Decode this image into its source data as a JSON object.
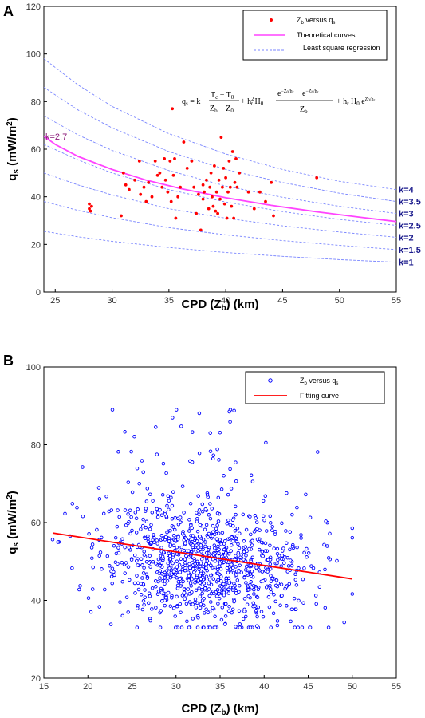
{
  "panels": [
    {
      "letter": "A",
      "xlabel": "CPD (Z_b) (km)",
      "ylabel": "q_s (mW/m²)",
      "legend": [
        "Z_b versus q_s",
        "Theoretical curves",
        "Least square regression"
      ],
      "formula": "q_s = k(T_c − T_0)/(Z_b − Z_0) + h_r² H_0 (e^{−Z_0/h_r} − e^{−Z_b/h_r})/Z_b + h_r H_0 e^{Z_0/h_r}",
      "magenta_label": "k=2.7",
      "k_labels": [
        "k=4",
        "k=3.5",
        "k=3",
        "k=2.5",
        "k=2",
        "k=1.5",
        "k=1"
      ]
    },
    {
      "letter": "B",
      "xlabel": "CPD (Z_b) (km)",
      "ylabel": "q_s (mW/m²)",
      "legend": [
        "Z_b versus q_s",
        "Fitting curve"
      ]
    }
  ],
  "colors": {
    "red_points": "#ff0000",
    "magenta_curve": "#ff44ff",
    "blue_dashed": "#7a86ff",
    "blue_points": "#0000ff",
    "fit_line": "#ff0000"
  },
  "chart_data": [
    {
      "type": "scatter",
      "title": "",
      "xlabel": "CPD (Zb) (km)",
      "ylabel": "qs (mW/m2)",
      "xlim": [
        24,
        55
      ],
      "ylim": [
        0,
        120
      ],
      "xticks": [
        25,
        30,
        35,
        40,
        45,
        50,
        55
      ],
      "yticks": [
        0,
        20,
        40,
        60,
        80,
        100,
        120
      ],
      "legend_position": "top-right",
      "series": [
        {
          "name": "Zb versus qs",
          "kind": "points",
          "points": [
            [
              28.0,
              37
            ],
            [
              28.0,
              35
            ],
            [
              28.1,
              34
            ],
            [
              28.2,
              36
            ],
            [
              30.8,
              32
            ],
            [
              31.0,
              50
            ],
            [
              31.2,
              45
            ],
            [
              31.5,
              43
            ],
            [
              32.0,
              47
            ],
            [
              32.4,
              55
            ],
            [
              32.5,
              41
            ],
            [
              32.8,
              44
            ],
            [
              33.0,
              38
            ],
            [
              33.2,
              46
            ],
            [
              33.5,
              40
            ],
            [
              33.8,
              55
            ],
            [
              34.0,
              49
            ],
            [
              34.2,
              50
            ],
            [
              34.4,
              44
            ],
            [
              34.6,
              56
            ],
            [
              34.7,
              47
            ],
            [
              34.9,
              42
            ],
            [
              35.1,
              55
            ],
            [
              35.2,
              38
            ],
            [
              35.3,
              77
            ],
            [
              35.4,
              49
            ],
            [
              35.5,
              56
            ],
            [
              35.6,
              31
            ],
            [
              35.8,
              40
            ],
            [
              36.0,
              44
            ],
            [
              36.3,
              63
            ],
            [
              36.6,
              52
            ],
            [
              37.0,
              55
            ],
            [
              37.2,
              44
            ],
            [
              37.4,
              33
            ],
            [
              37.6,
              41
            ],
            [
              37.8,
              26
            ],
            [
              38.0,
              39
            ],
            [
              38.0,
              45
            ],
            [
              38.1,
              42
            ],
            [
              38.3,
              47
            ],
            [
              38.5,
              35
            ],
            [
              38.6,
              44
            ],
            [
              38.7,
              50
            ],
            [
              38.8,
              40
            ],
            [
              38.9,
              36
            ],
            [
              39.0,
              53
            ],
            [
              39.1,
              34
            ],
            [
              39.2,
              42
            ],
            [
              39.3,
              33
            ],
            [
              39.4,
              47
            ],
            [
              39.5,
              39
            ],
            [
              39.6,
              65
            ],
            [
              39.7,
              44
            ],
            [
              39.8,
              52
            ],
            [
              39.9,
              37
            ],
            [
              40.0,
              48
            ],
            [
              40.1,
              31
            ],
            [
              40.2,
              42
            ],
            [
              40.3,
              55
            ],
            [
              40.4,
              44
            ],
            [
              40.5,
              36
            ],
            [
              40.6,
              59
            ],
            [
              40.7,
              31
            ],
            [
              40.8,
              46
            ],
            [
              40.9,
              56
            ],
            [
              41.0,
              44
            ],
            [
              41.2,
              50
            ],
            [
              42.0,
              42
            ],
            [
              42.5,
              35
            ],
            [
              43.0,
              42
            ],
            [
              43.5,
              38
            ],
            [
              44.0,
              46
            ],
            [
              44.2,
              32
            ],
            [
              48.0,
              48
            ]
          ]
        },
        {
          "name": "Theoretical curves",
          "kind": "curve",
          "label_on_chart": "k=2.7",
          "x": [
            24,
            25,
            27,
            30,
            33,
            36,
            40,
            44,
            48,
            52,
            55
          ],
          "y": [
            65.5,
            62.0,
            57.0,
            51.5,
            47.0,
            43.5,
            39.6,
            36.4,
            33.7,
            31.3,
            29.6
          ]
        },
        {
          "name": "Least square regression",
          "kind": "curve-family",
          "curves": [
            {
              "label": "k=4",
              "x": [
                24,
                27,
                30,
                35,
                40,
                45,
                50,
                55
              ],
              "y": [
                98,
                87,
                78,
                66.5,
                58,
                51.5,
                46.5,
                43
              ]
            },
            {
              "label": "k=3.5",
              "x": [
                24,
                27,
                30,
                35,
                40,
                45,
                50,
                55
              ],
              "y": [
                86,
                76.5,
                69,
                59,
                51.5,
                46,
                41.5,
                38
              ]
            },
            {
              "label": "k=3",
              "x": [
                24,
                27,
                30,
                35,
                40,
                45,
                50,
                55
              ],
              "y": [
                74,
                66,
                59.5,
                51,
                44.5,
                39.8,
                36,
                33
              ]
            },
            {
              "label": "k=2.5",
              "x": [
                24,
                27,
                30,
                35,
                40,
                45,
                50,
                55
              ],
              "y": [
                62,
                55.5,
                50,
                43,
                37.8,
                33.8,
                30.5,
                28
              ]
            },
            {
              "label": "k=2",
              "x": [
                24,
                27,
                30,
                35,
                40,
                45,
                50,
                55
              ],
              "y": [
                50,
                45,
                40.8,
                35,
                31,
                27.8,
                25.2,
                23
              ]
            },
            {
              "label": "k=1.5",
              "x": [
                24,
                27,
                30,
                35,
                40,
                45,
                50,
                55
              ],
              "y": [
                38,
                34.3,
                31.2,
                27,
                24,
                21.6,
                19.6,
                17.8
              ]
            },
            {
              "label": "k=1",
              "x": [
                24,
                27,
                30,
                35,
                40,
                45,
                50,
                55
              ],
              "y": [
                25.5,
                23.2,
                21.3,
                18.7,
                16.6,
                15,
                13.6,
                12.5
              ]
            }
          ]
        }
      ]
    },
    {
      "type": "scatter",
      "title": "",
      "xlabel": "CPD (Zb) (km)",
      "ylabel": "qs (mW/m2)",
      "xlim": [
        15,
        55
      ],
      "ylim": [
        20,
        100
      ],
      "xticks": [
        15,
        20,
        25,
        30,
        35,
        40,
        45,
        50,
        55
      ],
      "yticks": [
        20,
        40,
        60,
        80,
        100
      ],
      "legend_position": "top-right",
      "series": [
        {
          "name": "Zb versus qs",
          "kind": "points",
          "approx_count": 1100,
          "x_range": [
            16,
            50
          ],
          "y_range": [
            33,
            89
          ],
          "center": [
            33.5,
            49
          ],
          "points": []
        },
        {
          "name": "Fitting curve",
          "kind": "line",
          "x": [
            16,
            50
          ],
          "y": [
            57.3,
            45.5
          ]
        }
      ]
    }
  ]
}
